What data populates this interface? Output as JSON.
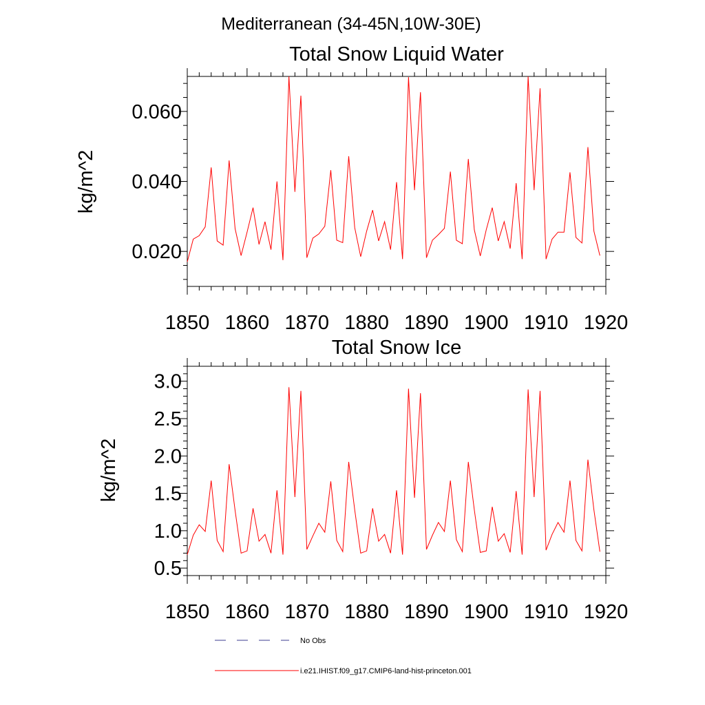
{
  "figure": {
    "title": "Mediterranean (34-45N,10W-30E)"
  },
  "legend": {
    "items": [
      {
        "label": "No Obs",
        "color": "#3b3b8f",
        "style": "dashed"
      },
      {
        "label": "i.e21.IHIST.f09_g17.CMIP6-land-hist-princeton.001",
        "color": "#ff0000",
        "style": "solid"
      }
    ]
  },
  "chart_data": [
    {
      "type": "line",
      "title": "Total Snow Liquid Water",
      "xlabel": "",
      "ylabel": "kg/m^2",
      "xlim": [
        1850,
        1920
      ],
      "ylim": [
        0.01,
        0.07
      ],
      "xticks": [
        1850,
        1860,
        1870,
        1880,
        1890,
        1900,
        1910,
        1920
      ],
      "xtick_labels": [
        "1850",
        "1860",
        "1870",
        "1880",
        "1890",
        "1900",
        "1910",
        "1920"
      ],
      "yticks": [
        0.02,
        0.04,
        0.06
      ],
      "ytick_labels": [
        "0.020",
        "0.040",
        "0.060"
      ],
      "x": [
        1850,
        1851,
        1852,
        1853,
        1854,
        1855,
        1856,
        1857,
        1858,
        1859,
        1860,
        1861,
        1862,
        1863,
        1864,
        1865,
        1866,
        1867,
        1868,
        1869,
        1870,
        1871,
        1872,
        1873,
        1874,
        1875,
        1876,
        1877,
        1878,
        1879,
        1880,
        1881,
        1882,
        1883,
        1884,
        1885,
        1886,
        1887,
        1888,
        1889,
        1890,
        1891,
        1892,
        1893,
        1894,
        1895,
        1896,
        1897,
        1898,
        1899,
        1900,
        1901,
        1902,
        1903,
        1904,
        1905,
        1906,
        1907,
        1908,
        1909,
        1910,
        1911,
        1912,
        1913,
        1914,
        1915,
        1916,
        1917,
        1918,
        1919
      ],
      "series": [
        {
          "color": "#ff0000",
          "values": [
            0.017,
            0.0235,
            0.0245,
            0.027,
            0.044,
            0.023,
            0.0218,
            0.046,
            0.0265,
            0.0188,
            0.0255,
            0.0325,
            0.022,
            0.0285,
            0.0205,
            0.04,
            0.0175,
            0.07,
            0.037,
            0.0645,
            0.0182,
            0.0238,
            0.025,
            0.0272,
            0.0432,
            0.0232,
            0.0225,
            0.0472,
            0.0268,
            0.0185,
            0.0258,
            0.0318,
            0.023,
            0.0285,
            0.0205,
            0.0398,
            0.0178,
            0.0698,
            0.0375,
            0.0655,
            0.0182,
            0.0232,
            0.0248,
            0.0266,
            0.0428,
            0.0232,
            0.0222,
            0.0464,
            0.0262,
            0.0187,
            0.0262,
            0.0325,
            0.023,
            0.0285,
            0.0208,
            0.0395,
            0.0178,
            0.07,
            0.0375,
            0.0666,
            0.0178,
            0.0235,
            0.0255,
            0.0255,
            0.0426,
            0.024,
            0.0224,
            0.0498,
            0.0258,
            0.0188
          ]
        }
      ],
      "grid": false
    },
    {
      "type": "line",
      "title": "Total Snow Ice",
      "xlabel": "",
      "ylabel": "kg/m^2",
      "xlim": [
        1850,
        1920
      ],
      "ylim": [
        0.4,
        3.2
      ],
      "xticks": [
        1850,
        1860,
        1870,
        1880,
        1890,
        1900,
        1910,
        1920
      ],
      "xtick_labels": [
        "1850",
        "1860",
        "1870",
        "1880",
        "1890",
        "1900",
        "1910",
        "1920"
      ],
      "yticks": [
        0.5,
        1.0,
        1.5,
        2.0,
        2.5,
        3.0
      ],
      "ytick_labels": [
        "0.5",
        "1.0",
        "1.5",
        "2.0",
        "2.5",
        "3.0"
      ],
      "x": [
        1850,
        1851,
        1852,
        1853,
        1854,
        1855,
        1856,
        1857,
        1858,
        1859,
        1860,
        1861,
        1862,
        1863,
        1864,
        1865,
        1866,
        1867,
        1868,
        1869,
        1870,
        1871,
        1872,
        1873,
        1874,
        1875,
        1876,
        1877,
        1878,
        1879,
        1880,
        1881,
        1882,
        1883,
        1884,
        1885,
        1886,
        1887,
        1888,
        1889,
        1890,
        1891,
        1892,
        1893,
        1894,
        1895,
        1896,
        1897,
        1898,
        1899,
        1900,
        1901,
        1902,
        1903,
        1904,
        1905,
        1906,
        1907,
        1908,
        1909,
        1910,
        1911,
        1912,
        1913,
        1914,
        1915,
        1916,
        1917,
        1918,
        1919
      ],
      "series": [
        {
          "color": "#ff0000",
          "values": [
            0.68,
            0.94,
            1.08,
            0.99,
            1.67,
            0.87,
            0.72,
            1.89,
            1.27,
            0.7,
            0.73,
            1.3,
            0.86,
            0.95,
            0.7,
            1.54,
            0.68,
            2.92,
            1.45,
            2.87,
            0.75,
            0.93,
            1.1,
            0.98,
            1.66,
            0.87,
            0.72,
            1.92,
            1.28,
            0.7,
            0.73,
            1.3,
            0.86,
            0.95,
            0.7,
            1.54,
            0.68,
            2.9,
            1.44,
            2.84,
            0.75,
            0.94,
            1.11,
            0.99,
            1.67,
            0.88,
            0.72,
            1.92,
            1.28,
            0.71,
            0.73,
            1.32,
            0.86,
            0.96,
            0.71,
            1.53,
            0.68,
            2.89,
            1.45,
            2.87,
            0.74,
            0.95,
            1.11,
            0.98,
            1.67,
            0.87,
            0.73,
            1.95,
            1.28,
            0.72
          ]
        }
      ],
      "grid": false
    }
  ]
}
